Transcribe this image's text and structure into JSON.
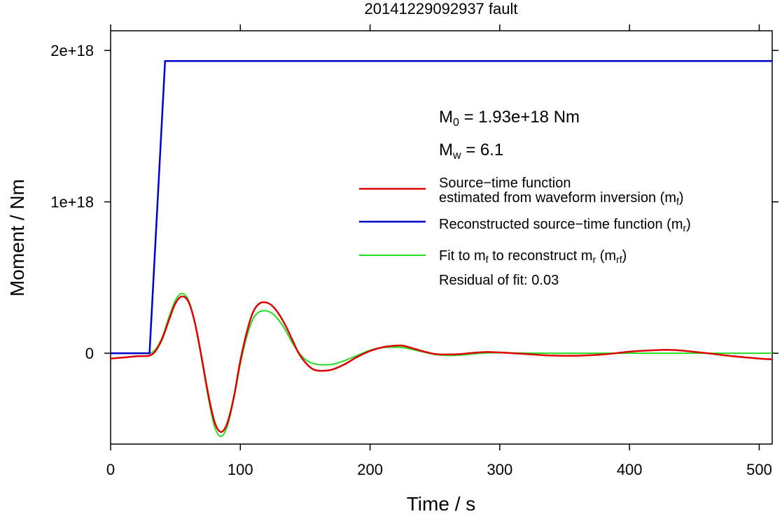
{
  "chart_data": {
    "type": "line",
    "title": "20141229092937 fault",
    "xlabel": "Time / s",
    "ylabel": "Moment / Nm",
    "xlim": [
      0,
      510
    ],
    "ylim": [
      -6e+17,
      2.13e+18
    ],
    "xticks": [
      0,
      100,
      200,
      300,
      400,
      500
    ],
    "xtick_labels": [
      "0",
      "100",
      "200",
      "300",
      "400",
      "500"
    ],
    "yticks": [
      0,
      1e+18,
      2e+18
    ],
    "ytick_labels": [
      "0",
      "1e+18",
      "2e+18"
    ],
    "grid": false,
    "legend_position": "right",
    "annotations": {
      "m0_label": "M",
      "m0_sub": "0",
      "m0_value": " = 1.93e+18 Nm",
      "mw_label": "M",
      "mw_sub": "w",
      "mw_value": " = 6.1",
      "residual": "Residual of fit: 0.03"
    },
    "legend": [
      {
        "color": "#e00000",
        "lines": [
          [
            {
              "t": "Source−time function"
            }
          ],
          [
            {
              "t": "estimated from waveform inversion (m"
            },
            {
              "t": "f",
              "sub": true
            },
            {
              "t": ")"
            }
          ]
        ]
      },
      {
        "color": "#0000cc",
        "lines": [
          [
            {
              "t": "Reconstructed source−time function (m"
            },
            {
              "t": "r",
              "sub": true
            },
            {
              "t": ")"
            }
          ]
        ]
      },
      {
        "color": "#22dd22",
        "lines": [
          [
            {
              "t": "Fit to m"
            },
            {
              "t": "f",
              "sub": true
            },
            {
              "t": " to reconstruct m"
            },
            {
              "t": "r",
              "sub": true
            },
            {
              "t": " (m"
            },
            {
              "t": "rf",
              "sub": true
            },
            {
              "t": ")"
            }
          ]
        ]
      }
    ],
    "series": [
      {
        "name": "Reconstructed source−time function (m_r)",
        "color": "#0000cc",
        "x": [
          0,
          30,
          42,
          510
        ],
        "y": [
          0,
          0,
          1.93e+18,
          1.93e+18
        ]
      },
      {
        "name": "Source−time function estimated from waveform inversion (m_f)",
        "color": "#e00000",
        "x": [
          0,
          10,
          20,
          30,
          35,
          40,
          45,
          50,
          55,
          60,
          65,
          70,
          75,
          80,
          85,
          90,
          95,
          100,
          105,
          110,
          115,
          120,
          125,
          130,
          135,
          140,
          145,
          150,
          155,
          160,
          170,
          180,
          190,
          200,
          210,
          220,
          225,
          230,
          240,
          250,
          260,
          270,
          280,
          290,
          300,
          320,
          340,
          360,
          380,
          400,
          420,
          430,
          440,
          460,
          480,
          500,
          510
        ],
        "y": [
          -3.5e+16,
          -2.8e+16,
          -2e+16,
          -1.5e+16,
          2e+16,
          1e+17,
          2.2e+17,
          3.3e+17,
          3.75e+17,
          3.4e+17,
          2e+17,
          -2e+16,
          -2.6e+17,
          -4.5e+17,
          -5.2e+17,
          -4.6e+17,
          -2.9e+17,
          -5e+16,
          1.4e+17,
          2.75e+17,
          3.3e+17,
          3.35e+17,
          3.1e+17,
          2.55e+17,
          1.8e+17,
          9e+16,
          0,
          -6e+16,
          -1e+17,
          -1.15e+17,
          -1.1e+17,
          -7.5e+16,
          -2.5e+16,
          1.5e+16,
          4e+16,
          5e+16,
          5e+16,
          4e+16,
          1.5e+16,
          -5000000000000000.0,
          -8000000000000000.0,
          -5000000000000000.0,
          3000000000000000.0,
          8000000000000000.0,
          5000000000000000.0,
          -5000000000000000.0,
          -1.5e+16,
          -1.6e+16,
          -8000000000000000.0,
          1e+16,
          2e+16,
          2.2e+16,
          1.8e+16,
          0,
          -2e+16,
          -3.5e+16,
          -4e+16
        ]
      },
      {
        "name": "Fit to m_f to reconstruct m_r (m_rf)",
        "color": "#22dd22",
        "x": [
          0,
          10,
          20,
          30,
          35,
          40,
          45,
          50,
          55,
          60,
          65,
          70,
          75,
          80,
          85,
          90,
          95,
          100,
          105,
          110,
          115,
          120,
          125,
          130,
          135,
          140,
          145,
          150,
          155,
          160,
          170,
          180,
          190,
          200,
          210,
          220,
          225,
          230,
          240,
          250,
          260,
          270,
          280,
          290,
          300,
          320,
          340,
          360,
          380,
          400,
          420,
          440,
          460,
          480,
          500,
          510
        ],
        "y": [
          0,
          0,
          0,
          0,
          3e+16,
          1.1e+17,
          2.4e+17,
          3.5e+17,
          3.95e+17,
          3.5e+17,
          2e+17,
          -3e+16,
          -2.8e+17,
          -4.8e+17,
          -5.5e+17,
          -4.8e+17,
          -3e+17,
          -7e+16,
          1.1e+17,
          2.3e+17,
          2.75e+17,
          2.8e+17,
          2.6e+17,
          2.15e+17,
          1.5e+17,
          7e+16,
          5000000000000000.0,
          -4e+16,
          -6.5e+16,
          -7.5e+16,
          -7.5e+16,
          -5e+16,
          -1.5e+16,
          2e+16,
          3.8e+16,
          4e+16,
          3.8e+16,
          3e+16,
          1e+16,
          -8000000000000000.0,
          -1.5e+16,
          -1.2e+16,
          -4000000000000000.0,
          2000000000000000.0,
          3000000000000000.0,
          1000000000000000.0,
          0,
          0,
          0,
          0,
          0,
          0,
          0,
          0,
          0,
          0
        ]
      }
    ]
  }
}
